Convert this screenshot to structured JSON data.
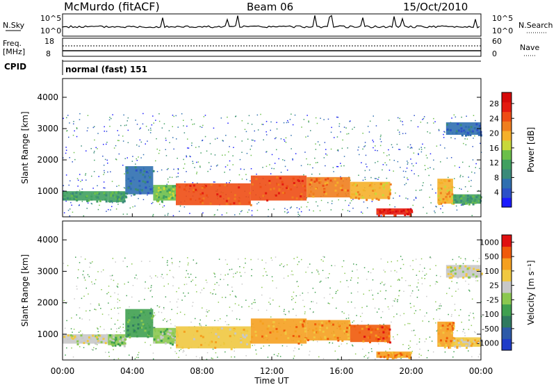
{
  "header": {
    "station": "McMurdo (fitACF)",
    "beam": "Beam 06",
    "date": "15/Oct/2010"
  },
  "left_labels": {
    "nsky": "N.Sky",
    "freq": "Freq.",
    "freq_unit": "[MHz]",
    "cpid": "CPID",
    "cpid_value": "normal (fast) 151"
  },
  "right_labels": {
    "nsearch": "N.Search",
    "nave": "Nave"
  },
  "noise_ticks_left": [
    "10^5",
    "10^0"
  ],
  "noise_ticks_right": [
    "10^5",
    "10^0"
  ],
  "freq_ticks_left": [
    "18",
    "8"
  ],
  "freq_ticks_right": [
    "60",
    "0"
  ],
  "colors": {
    "power": [
      "#1a1aff",
      "#2b50c8",
      "#2f6fb0",
      "#3a8a7a",
      "#40a060",
      "#6bbf4a",
      "#c8d83a",
      "#f5b02a",
      "#f07e1e",
      "#ee4c14",
      "#e41a10",
      "#d60a0a"
    ],
    "velocity": [
      "#e01010",
      "#f05a0a",
      "#f5a020",
      "#f0c840",
      "#c8c8c8",
      "#8bc850",
      "#3fa050",
      "#2f7a60",
      "#2d5aa8",
      "#1e3cc8"
    ]
  },
  "chart_data": [
    {
      "type": "heatmap",
      "panel": "power",
      "ylabel": "Slant Range [km]",
      "xlabel": "",
      "ylim": [
        180,
        4600
      ],
      "x_ticks": [
        "00:00",
        "04:00",
        "08:00",
        "12:00",
        "16:00",
        "20:00",
        "00:00"
      ],
      "y_ticks": [
        "1000",
        "2000",
        "3000",
        "4000"
      ],
      "colorbar_label": "Power [dB]",
      "colorbar_ticks": [
        "4",
        "8",
        "12",
        "16",
        "20",
        "24",
        "28"
      ],
      "colorbar_range": [
        0,
        31
      ],
      "bands": [
        {
          "t0": 0.0,
          "t1": 2.6,
          "r0": 700,
          "r1": 1000,
          "level": 10
        },
        {
          "t0": 2.6,
          "t1": 3.6,
          "r0": 650,
          "r1": 1000,
          "level": 12
        },
        {
          "t0": 3.6,
          "t1": 5.2,
          "r0": 900,
          "r1": 1800,
          "level": 6
        },
        {
          "t0": 5.2,
          "t1": 6.5,
          "r0": 700,
          "r1": 1200,
          "level": 14
        },
        {
          "t0": 6.5,
          "t1": 10.8,
          "r0": 550,
          "r1": 1250,
          "level": 26
        },
        {
          "t0": 10.8,
          "t1": 14.0,
          "r0": 700,
          "r1": 1500,
          "level": 24
        },
        {
          "t0": 14.0,
          "t1": 16.5,
          "r0": 800,
          "r1": 1450,
          "level": 22
        },
        {
          "t0": 16.5,
          "t1": 18.8,
          "r0": 750,
          "r1": 1300,
          "level": 20
        },
        {
          "t0": 18.0,
          "t1": 20.0,
          "r0": 250,
          "r1": 450,
          "level": 28
        },
        {
          "t0": 21.5,
          "t1": 22.4,
          "r0": 600,
          "r1": 1400,
          "level": 20
        },
        {
          "t0": 22.4,
          "t1": 24.0,
          "r0": 600,
          "r1": 900,
          "level": 10
        },
        {
          "t0": 22.0,
          "t1": 24.0,
          "r0": 2800,
          "r1": 3200,
          "level": 6
        }
      ]
    },
    {
      "type": "heatmap",
      "panel": "velocity",
      "ylabel": "Slant Range [km]",
      "xlabel": "Time UT",
      "ylim": [
        180,
        4600
      ],
      "x_ticks": [
        "00:00",
        "04:00",
        "08:00",
        "12:00",
        "16:00",
        "20:00",
        "00:00"
      ],
      "y_ticks": [
        "1000",
        "2000",
        "3000",
        "4000"
      ],
      "colorbar_label": "Velocity [m s⁻¹]",
      "colorbar_ticks": [
        "1000",
        "500",
        "100",
        "25",
        "-25",
        "-100",
        "-500",
        "-1000"
      ],
      "bands": [
        {
          "t0": 0.0,
          "t1": 2.6,
          "r0": 700,
          "r1": 1000,
          "level": 4
        },
        {
          "t0": 2.6,
          "t1": 3.6,
          "r0": 650,
          "r1": 1000,
          "level": 5
        },
        {
          "t0": 3.6,
          "t1": 5.2,
          "r0": 900,
          "r1": 1800,
          "level": 6
        },
        {
          "t0": 5.2,
          "t1": 6.5,
          "r0": 700,
          "r1": 1200,
          "level": 5
        },
        {
          "t0": 6.5,
          "t1": 10.8,
          "r0": 550,
          "r1": 1250,
          "level": 3
        },
        {
          "t0": 10.8,
          "t1": 14.0,
          "r0": 700,
          "r1": 1500,
          "level": 2
        },
        {
          "t0": 14.0,
          "t1": 16.5,
          "r0": 800,
          "r1": 1450,
          "level": 2
        },
        {
          "t0": 16.5,
          "t1": 18.8,
          "r0": 750,
          "r1": 1300,
          "level": 1
        },
        {
          "t0": 18.0,
          "t1": 20.0,
          "r0": 250,
          "r1": 450,
          "level": 2
        },
        {
          "t0": 21.5,
          "t1": 22.4,
          "r0": 600,
          "r1": 1400,
          "level": 2
        },
        {
          "t0": 22.4,
          "t1": 24.0,
          "r0": 600,
          "r1": 900,
          "level": 3
        },
        {
          "t0": 22.0,
          "t1": 24.0,
          "r0": 2800,
          "r1": 3200,
          "level": 4
        }
      ]
    }
  ]
}
